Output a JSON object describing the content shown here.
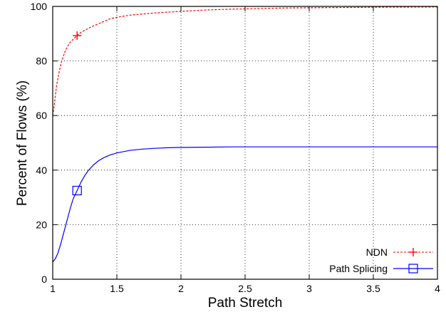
{
  "chart_data": {
    "type": "line",
    "xlabel": "Path Stretch",
    "ylabel": "Percent of Flows (%)",
    "xlim": [
      1,
      4
    ],
    "ylim": [
      0,
      100
    ],
    "xticks": [
      1,
      1.5,
      2,
      2.5,
      3,
      3.5,
      4
    ],
    "yticks": [
      0,
      20,
      40,
      60,
      80,
      100
    ],
    "grid": true,
    "legend_position": "bottom-right",
    "series": [
      {
        "name": "NDN",
        "color": "#ff0000",
        "line_style": "dashed",
        "marker": "plus",
        "marker_at": [
          1.19,
          89.3
        ],
        "x": [
          1,
          1.01,
          1.02,
          1.03,
          1.05,
          1.07,
          1.1,
          1.13,
          1.16,
          1.19,
          1.22,
          1.26,
          1.3,
          1.35,
          1.4,
          1.45,
          1.5,
          1.6,
          1.7,
          1.8,
          1.9,
          2.0,
          2.2,
          2.4,
          2.6,
          2.8,
          3.0,
          3.3,
          3.6,
          4.0
        ],
        "y": [
          60,
          63,
          67,
          71,
          76,
          80,
          84,
          86.5,
          88,
          89.3,
          90.5,
          91.5,
          92.5,
          93.5,
          94.5,
          95.5,
          96,
          96.8,
          97.2,
          97.6,
          97.9,
          98.2,
          98.7,
          99.0,
          99.2,
          99.4,
          99.5,
          99.6,
          99.7,
          99.8
        ]
      },
      {
        "name": "Path Splicing",
        "color": "#0000ff",
        "line_style": "solid",
        "marker": "square",
        "marker_at": [
          1.19,
          32.5
        ],
        "x": [
          1,
          1.02,
          1.04,
          1.06,
          1.08,
          1.1,
          1.12,
          1.14,
          1.16,
          1.19,
          1.22,
          1.25,
          1.28,
          1.32,
          1.36,
          1.4,
          1.45,
          1.5,
          1.6,
          1.7,
          1.8,
          1.9,
          2.0,
          2.2,
          2.4,
          2.6,
          3.0,
          3.5,
          4.0
        ],
        "y": [
          6.3,
          7.5,
          9.5,
          12.5,
          16,
          19.5,
          23,
          26.5,
          29.5,
          32.5,
          35.5,
          38,
          40,
          42,
          43.5,
          44.6,
          45.6,
          46.3,
          47.2,
          47.7,
          48,
          48.2,
          48.3,
          48.4,
          48.5,
          48.5,
          48.5,
          48.5,
          48.5
        ]
      }
    ]
  }
}
